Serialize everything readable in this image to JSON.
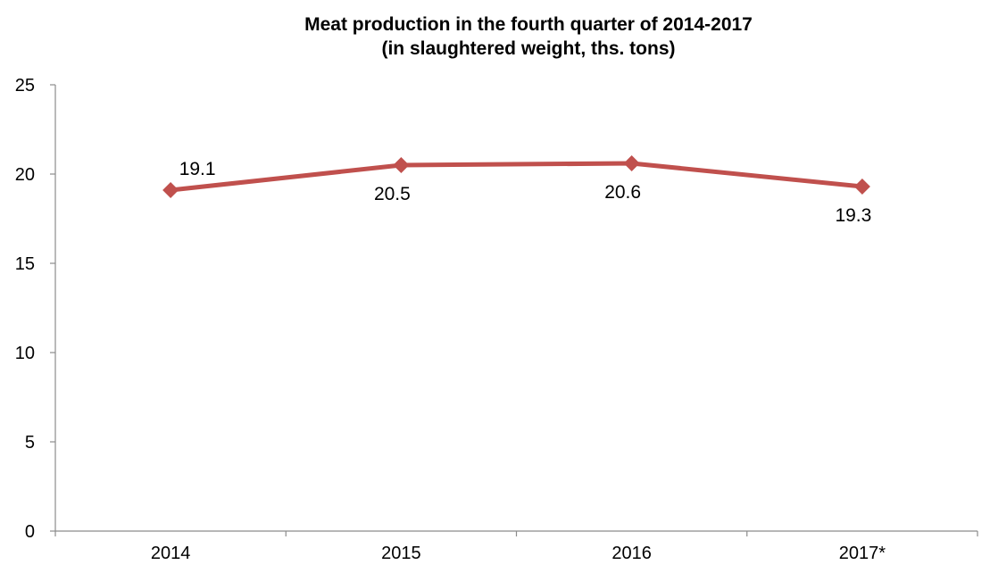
{
  "chart_data": {
    "type": "line",
    "title": [
      "Meat production in the fourth quarter of 2014-2017",
      "(in slaughtered weight, ths. tons)"
    ],
    "xlabel": "",
    "ylabel": "",
    "categories": [
      "2014",
      "2015",
      "2016",
      "2017*"
    ],
    "series": [
      {
        "values": [
          19.1,
          20.5,
          20.6,
          19.3
        ],
        "data_labels": [
          "19.1",
          "20.5",
          "20.6",
          "19.3"
        ],
        "color": "#c0504d",
        "marker": "diamond"
      }
    ],
    "ylim": [
      0,
      25
    ],
    "yticks": [
      0,
      5,
      10,
      15,
      20,
      25
    ],
    "grid": false,
    "legend": "none"
  }
}
